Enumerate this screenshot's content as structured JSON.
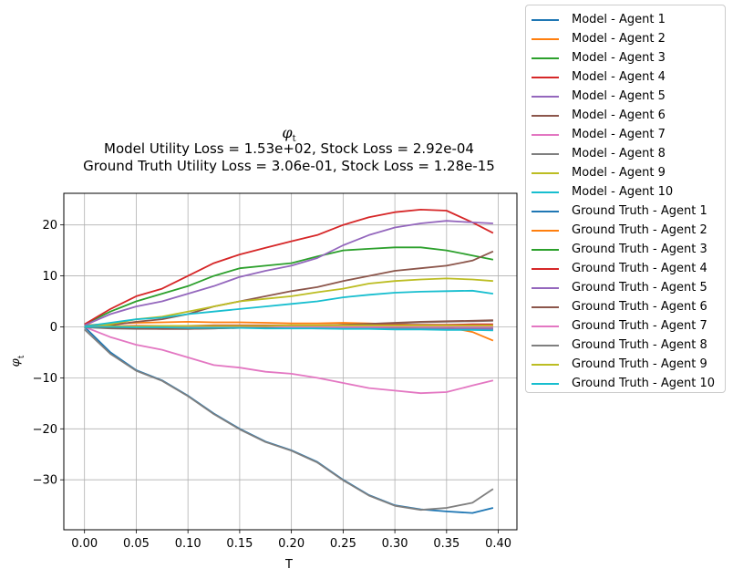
{
  "chart_data": {
    "type": "line",
    "title_symbol": "φ",
    "title_sub": "t",
    "subtitle_lines": [
      "Model Utility Loss = 1.53e+02, Stock Loss = 2.92e-04",
      "Ground Truth Utility Loss = 3.06e-01, Stock Loss = 1.28e-15"
    ],
    "xlabel": "T",
    "ylabel_symbol": "φ",
    "ylabel_sub": "t",
    "xlim": [
      -0.02,
      0.418
    ],
    "ylim": [
      -39.8,
      26.2
    ],
    "xticks": [
      0.0,
      0.05,
      0.1,
      0.15,
      0.2,
      0.25,
      0.3,
      0.35,
      0.4
    ],
    "xtick_labels": [
      "0.00",
      "0.05",
      "0.10",
      "0.15",
      "0.20",
      "0.25",
      "0.30",
      "0.35",
      "0.40"
    ],
    "yticks": [
      20,
      10,
      0,
      -10,
      -20,
      -30
    ],
    "ytick_labels": [
      "20",
      "10",
      "0",
      "−10",
      "−20",
      "−30"
    ],
    "grid": true,
    "legend_position": "outside-right",
    "x": [
      0.0,
      0.025,
      0.05,
      0.075,
      0.1,
      0.125,
      0.15,
      0.175,
      0.2,
      0.225,
      0.25,
      0.275,
      0.3,
      0.325,
      0.35,
      0.375,
      0.395
    ],
    "series": [
      {
        "name": "Model - Agent 1",
        "color": "#1f77b4",
        "values": [
          0.0,
          -5.0,
          -8.5,
          -10.5,
          -13.5,
          -17.0,
          -20.0,
          -22.5,
          -24.2,
          -26.5,
          -30.0,
          -33.0,
          -35.0,
          -35.8,
          -36.2,
          -36.5,
          -35.5
        ]
      },
      {
        "name": "Model - Agent 2",
        "color": "#ff7f0e",
        "values": [
          0.3,
          0.6,
          0.8,
          0.9,
          1.0,
          0.9,
          0.9,
          0.8,
          0.7,
          0.7,
          0.8,
          0.7,
          0.5,
          0.3,
          0.0,
          -1.0,
          -2.7
        ]
      },
      {
        "name": "Model - Agent 3",
        "color": "#2ca02c",
        "values": [
          0.5,
          3.0,
          5.0,
          6.5,
          8.0,
          10.0,
          11.5,
          12.0,
          12.5,
          13.8,
          15.0,
          15.3,
          15.6,
          15.6,
          15.0,
          14.0,
          13.2
        ]
      },
      {
        "name": "Model - Agent 4",
        "color": "#d62728",
        "values": [
          0.5,
          3.5,
          6.0,
          7.5,
          10.0,
          12.5,
          14.2,
          15.5,
          16.8,
          18.0,
          20.0,
          21.5,
          22.5,
          23.0,
          22.8,
          20.5,
          18.4
        ]
      },
      {
        "name": "Model - Agent 5",
        "color": "#9467bd",
        "values": [
          0.3,
          2.5,
          4.0,
          5.0,
          6.5,
          8.0,
          9.8,
          11.0,
          12.0,
          13.5,
          16.0,
          18.0,
          19.5,
          20.3,
          20.8,
          20.5,
          20.3
        ]
      },
      {
        "name": "Model - Agent 6",
        "color": "#8c564b",
        "values": [
          0.1,
          0.3,
          1.0,
          1.5,
          2.5,
          4.0,
          5.0,
          6.0,
          7.0,
          7.8,
          9.0,
          10.0,
          11.0,
          11.5,
          12.0,
          13.0,
          14.8
        ]
      },
      {
        "name": "Model - Agent 7",
        "color": "#e377c2",
        "values": [
          0.0,
          -2.0,
          -3.5,
          -4.5,
          -6.0,
          -7.5,
          -8.0,
          -8.8,
          -9.2,
          -10.0,
          -11.0,
          -12.0,
          -12.5,
          -13.0,
          -12.8,
          -11.5,
          -10.5
        ]
      },
      {
        "name": "Model - Agent 8",
        "color": "#7f7f7f",
        "values": [
          -0.1,
          -0.3,
          -0.4,
          -0.4,
          -0.4,
          -0.3,
          -0.2,
          -0.1,
          0.0,
          0.1,
          0.3,
          0.5,
          0.7,
          0.9,
          1.0,
          1.1,
          1.2
        ]
      },
      {
        "name": "Model - Agent 9",
        "color": "#bcbd22",
        "values": [
          0.1,
          0.5,
          1.5,
          2.0,
          3.0,
          4.0,
          5.0,
          5.5,
          6.0,
          6.8,
          7.5,
          8.5,
          9.0,
          9.3,
          9.5,
          9.3,
          9.0
        ]
      },
      {
        "name": "Model - Agent 10",
        "color": "#17becf",
        "values": [
          0.1,
          0.8,
          1.5,
          1.8,
          2.5,
          3.0,
          3.5,
          4.0,
          4.5,
          5.0,
          5.8,
          6.3,
          6.7,
          6.9,
          7.0,
          7.1,
          6.5
        ]
      },
      {
        "name": "Ground Truth - Agent 1",
        "color": "#1f77b4",
        "values": [
          0.0,
          -0.1,
          -0.2,
          -0.2,
          -0.2,
          -0.2,
          -0.2,
          -0.2,
          -0.2,
          -0.2,
          -0.3,
          -0.3,
          -0.4,
          -0.4,
          -0.5,
          -0.5,
          -0.5
        ]
      },
      {
        "name": "Ground Truth - Agent 2",
        "color": "#ff7f0e",
        "values": [
          0.0,
          0.1,
          0.1,
          0.1,
          0.1,
          0.1,
          0.1,
          0.1,
          0.1,
          0.1,
          0.1,
          0.1,
          0.1,
          0.1,
          0.1,
          0.1,
          0.1
        ]
      },
      {
        "name": "Ground Truth - Agent 3",
        "color": "#2ca02c",
        "values": [
          0.0,
          0.0,
          0.0,
          -0.1,
          -0.1,
          -0.1,
          -0.1,
          -0.1,
          -0.1,
          -0.2,
          -0.2,
          -0.2,
          -0.2,
          -0.3,
          -0.3,
          -0.3,
          -0.3
        ]
      },
      {
        "name": "Ground Truth - Agent 4",
        "color": "#d62728",
        "values": [
          0.0,
          0.1,
          0.2,
          0.2,
          0.2,
          0.3,
          0.3,
          0.3,
          0.3,
          0.3,
          0.4,
          0.4,
          0.4,
          0.4,
          0.4,
          0.5,
          0.5
        ]
      },
      {
        "name": "Ground Truth - Agent 5",
        "color": "#9467bd",
        "values": [
          0.0,
          0.0,
          -0.1,
          -0.1,
          -0.1,
          -0.2,
          -0.2,
          -0.2,
          -0.2,
          -0.3,
          -0.3,
          -0.3,
          -0.4,
          -0.4,
          -0.4,
          -0.4,
          -0.4
        ]
      },
      {
        "name": "Ground Truth - Agent 6",
        "color": "#8c564b",
        "values": [
          0.0,
          -0.2,
          -0.3,
          -0.4,
          -0.4,
          -0.3,
          -0.2,
          -0.1,
          0.1,
          0.2,
          0.4,
          0.6,
          0.8,
          1.0,
          1.1,
          1.2,
          1.3
        ]
      },
      {
        "name": "Ground Truth - Agent 7",
        "color": "#e377c2",
        "values": [
          0.0,
          0.1,
          0.1,
          0.1,
          0.1,
          0.1,
          0.1,
          0.1,
          0.0,
          0.0,
          0.0,
          0.0,
          0.0,
          0.0,
          0.0,
          0.0,
          0.0
        ]
      },
      {
        "name": "Ground Truth - Agent 8",
        "color": "#7f7f7f",
        "values": [
          -0.5,
          -5.3,
          -8.6,
          -10.6,
          -13.6,
          -17.1,
          -20.1,
          -22.6,
          -24.3,
          -26.6,
          -30.1,
          -33.1,
          -35.1,
          -35.9,
          -35.5,
          -34.5,
          -31.8
        ]
      },
      {
        "name": "Ground Truth - Agent 9",
        "color": "#bcbd22",
        "values": [
          0.0,
          0.1,
          0.1,
          0.2,
          0.2,
          0.2,
          0.2,
          0.2,
          0.3,
          0.3,
          0.3,
          0.3,
          0.3,
          0.3,
          0.3,
          0.3,
          0.3
        ]
      },
      {
        "name": "Ground Truth - Agent 10",
        "color": "#17becf",
        "values": [
          0.0,
          0.0,
          -0.1,
          -0.1,
          -0.2,
          -0.2,
          -0.2,
          -0.3,
          -0.3,
          -0.3,
          -0.4,
          -0.4,
          -0.5,
          -0.5,
          -0.6,
          -0.6,
          -0.7
        ]
      }
    ]
  }
}
